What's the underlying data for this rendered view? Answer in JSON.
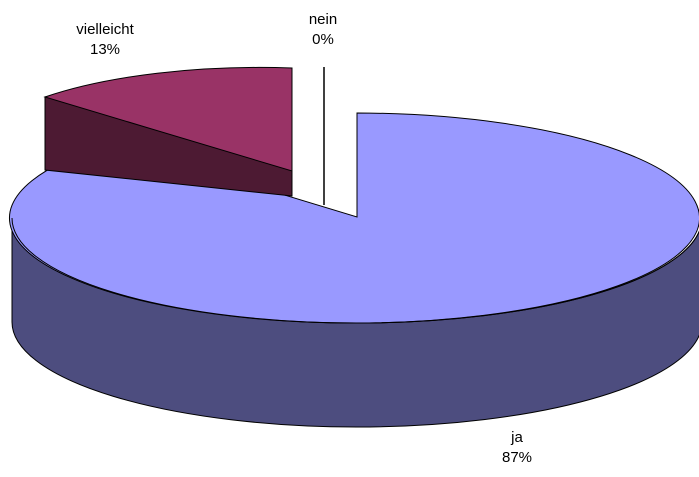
{
  "chart_data": {
    "type": "pie",
    "style": "3d-exploded",
    "slices": [
      {
        "label": "ja",
        "value": 87,
        "value_label": "87%",
        "color": "#9999ff",
        "side_color": "#4d4d7f"
      },
      {
        "label": "nein",
        "value": 0,
        "value_label": "0%",
        "color": "#ffffff",
        "side_color": "#000000"
      },
      {
        "label": "vielleicht",
        "value": 13,
        "value_label": "13%",
        "color": "#993366",
        "side_color": "#4d1a33"
      }
    ]
  }
}
